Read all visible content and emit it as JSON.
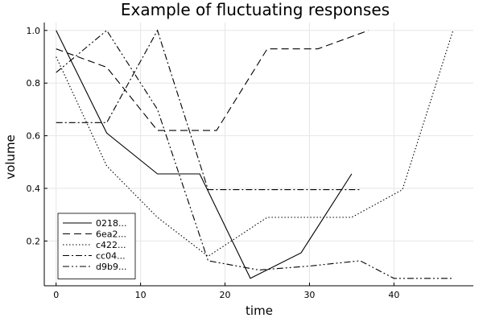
{
  "chart_data": {
    "type": "line",
    "title": "Example of fluctuating responses",
    "xlabel": "time",
    "ylabel": "volume",
    "xlim": [
      -1.4,
      49.4
    ],
    "ylim": [
      0.03,
      1.03
    ],
    "xticks": [
      0,
      10,
      20,
      30,
      40
    ],
    "xtick_labels": [
      "0",
      "10",
      "20",
      "30",
      "40"
    ],
    "yticks": [
      0.2,
      0.4,
      0.6,
      0.8,
      1.0
    ],
    "ytick_labels": [
      "0.2",
      "0.4",
      "0.6",
      "0.8",
      "1.0"
    ],
    "grid": true,
    "legend_position": "bottom-left",
    "series": [
      {
        "name": "0218...",
        "dash": "solid",
        "x": [
          0,
          6,
          12,
          17,
          23,
          29,
          35
        ],
        "y": [
          1.0,
          0.61,
          0.455,
          0.455,
          0.058,
          0.155,
          0.455
        ]
      },
      {
        "name": "6ea2...",
        "dash": "dashed",
        "x": [
          0,
          6,
          12,
          19,
          25,
          31,
          37
        ],
        "y": [
          0.93,
          0.86,
          0.62,
          0.62,
          0.93,
          0.93,
          1.0
        ]
      },
      {
        "name": "c422...",
        "dash": "dotted",
        "x": [
          0,
          6,
          12,
          18,
          25,
          35,
          41,
          47
        ],
        "y": [
          0.9,
          0.485,
          0.29,
          0.142,
          0.29,
          0.29,
          0.395,
          1.0
        ]
      },
      {
        "name": "cc04...",
        "dash": "dashdot",
        "x": [
          0,
          6,
          12,
          18,
          24,
          30,
          36
        ],
        "y": [
          0.65,
          0.65,
          1.0,
          0.395,
          0.395,
          0.395,
          0.395
        ]
      },
      {
        "name": "d9b9...",
        "dash": "dashdotdot",
        "x": [
          0,
          6,
          12,
          18,
          24,
          30,
          36,
          40,
          47
        ],
        "y": [
          0.84,
          1.0,
          0.7,
          0.125,
          0.09,
          0.105,
          0.125,
          0.058,
          0.058
        ]
      }
    ]
  }
}
